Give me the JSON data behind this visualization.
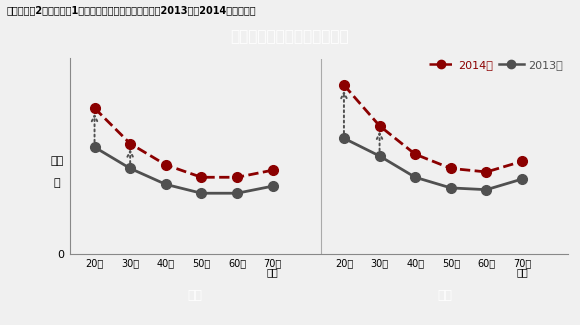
{
  "title_main": "【調査結果2】ユーザー1人あたりのスマホ平均検索数（2013年と2014年の比較）",
  "title_sub": "若年層の検索数が大きく伸長",
  "ylabel_line1": "検索",
  "ylabel_line2": "数",
  "categories": [
    "20代",
    "30代",
    "40代",
    "50代",
    "60代",
    "70歳\n以上"
  ],
  "male_2014": [
    0.82,
    0.62,
    0.5,
    0.43,
    0.43,
    0.47
  ],
  "male_2013": [
    0.6,
    0.48,
    0.39,
    0.34,
    0.34,
    0.38
  ],
  "female_2014": [
    0.95,
    0.72,
    0.56,
    0.48,
    0.46,
    0.52
  ],
  "female_2013": [
    0.65,
    0.55,
    0.43,
    0.37,
    0.36,
    0.42
  ],
  "color_2014": "#8B0000",
  "color_2013": "#505050",
  "title_bg": "#8B0000",
  "male_label_bg": "#404040",
  "female_label_bg": "#8B0000",
  "label_text_color": "#ffffff",
  "legend_2014": "2014年",
  "legend_2013": "2013年",
  "male_label": "男性",
  "female_label": "女性",
  "arrow_indices": [
    0,
    1
  ],
  "ylim": [
    0,
    1.1
  ],
  "background_color": "#f0f0f0",
  "plot_bg": "#f0f0f0"
}
